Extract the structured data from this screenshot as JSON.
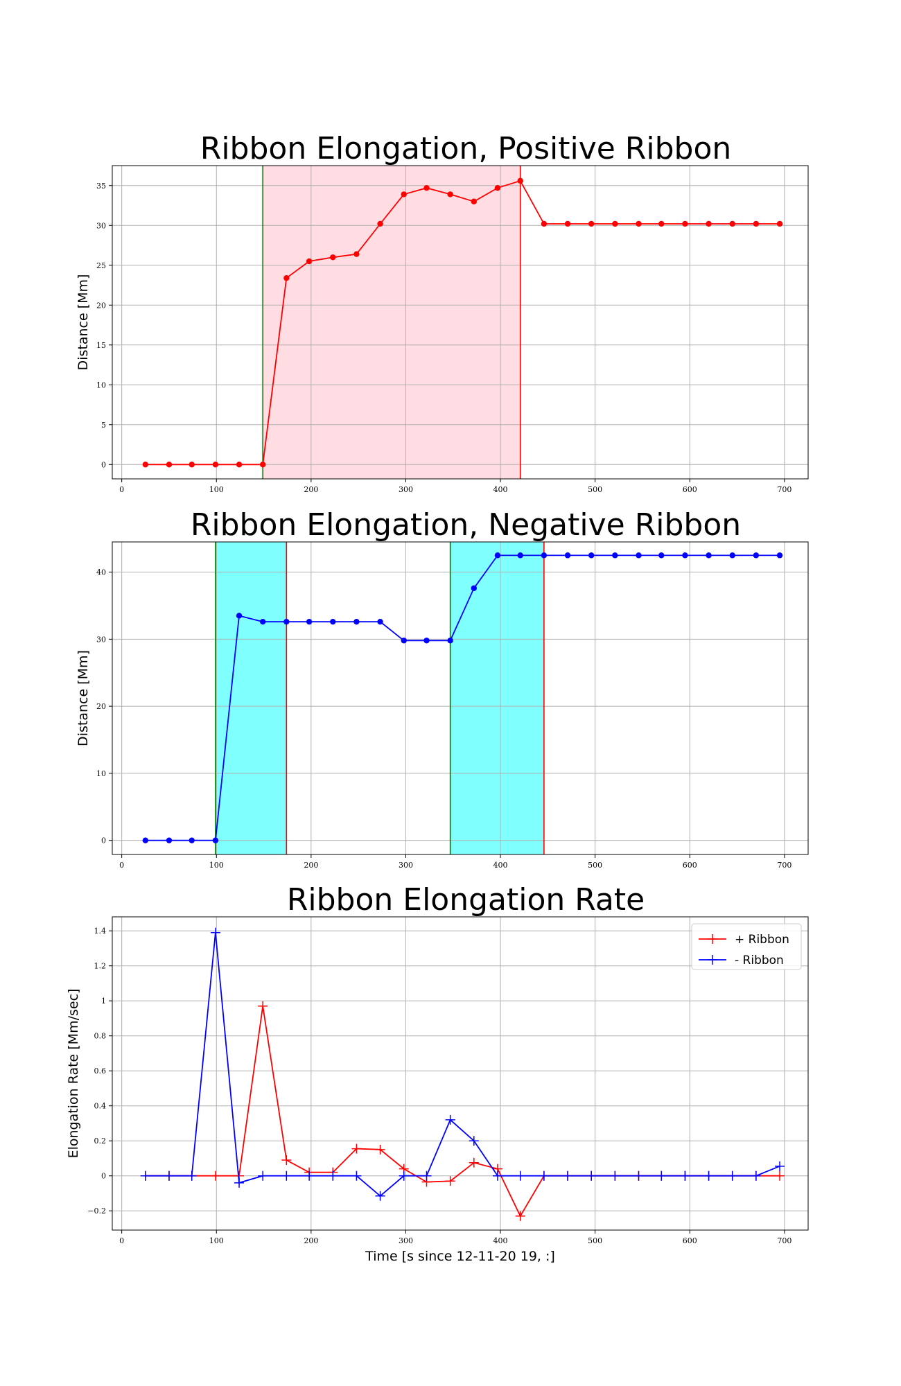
{
  "chart_data": [
    {
      "type": "line",
      "title": "Ribbon Elongation, Positive Ribbon",
      "xlabel": "",
      "ylabel": "Distance [Mm]",
      "xlim": [
        -10,
        725
      ],
      "ylim": [
        -1.8,
        37.5
      ],
      "xticks": [
        0,
        100,
        200,
        300,
        400,
        500,
        600,
        700
      ],
      "yticks": [
        0,
        5,
        10,
        15,
        20,
        25,
        30,
        35
      ],
      "grid": true,
      "shaded_regions": [
        {
          "start": 149,
          "end": 421,
          "color": "#ffdde3"
        }
      ],
      "vertical_lines": [
        {
          "x": 149,
          "color": "#008000"
        },
        {
          "x": 421,
          "color": "#ff0000"
        }
      ],
      "series": [
        {
          "color": "#ff0000",
          "marker": "circle",
          "x": [
            25,
            50,
            74,
            99,
            124,
            149,
            174,
            198,
            223,
            248,
            273,
            298,
            322,
            347,
            372,
            397,
            421,
            446,
            471,
            496,
            521,
            546,
            570,
            595,
            620,
            645,
            670,
            695
          ],
          "y": [
            0,
            0,
            0,
            0,
            0,
            0,
            23.4,
            25.5,
            26.0,
            26.4,
            30.2,
            33.9,
            34.7,
            33.9,
            33.0,
            34.7,
            35.6,
            30.2,
            30.2,
            30.2,
            30.2,
            30.2,
            30.2,
            30.2,
            30.2,
            30.2,
            30.2,
            30.2
          ]
        }
      ]
    },
    {
      "type": "line",
      "title": "Ribbon Elongation, Negative Ribbon",
      "xlabel": "",
      "ylabel": "Distance [Mm]",
      "xlim": [
        -10,
        725
      ],
      "ylim": [
        -2.1,
        44.5
      ],
      "xticks": [
        0,
        100,
        200,
        300,
        400,
        500,
        600,
        700
      ],
      "yticks": [
        0,
        10,
        20,
        30,
        40
      ],
      "grid": true,
      "shaded_regions": [
        {
          "start": 99,
          "end": 174,
          "color": "#80ffff"
        },
        {
          "start": 347,
          "end": 446,
          "color": "#80ffff"
        }
      ],
      "vertical_lines": [
        {
          "x": 99,
          "color": "#008000"
        },
        {
          "x": 174,
          "color": "#ff0000"
        },
        {
          "x": 347,
          "color": "#008000"
        },
        {
          "x": 446,
          "color": "#ff0000"
        }
      ],
      "series": [
        {
          "color": "#0000ff",
          "marker": "circle",
          "x": [
            25,
            50,
            74,
            99,
            124,
            149,
            174,
            198,
            223,
            248,
            273,
            298,
            322,
            347,
            372,
            397,
            421,
            446,
            471,
            496,
            521,
            546,
            570,
            595,
            620,
            645,
            670,
            695
          ],
          "y": [
            0,
            0,
            0,
            0,
            33.5,
            32.6,
            32.6,
            32.6,
            32.6,
            32.6,
            32.6,
            29.8,
            29.8,
            29.8,
            37.6,
            42.5,
            42.5,
            42.5,
            42.5,
            42.5,
            42.5,
            42.5,
            42.5,
            42.5,
            42.5,
            42.5,
            42.5,
            42.5
          ]
        }
      ]
    },
    {
      "type": "line",
      "title": "Ribbon Elongation Rate",
      "xlabel": "Time [s since 12-11-20 19, :]",
      "ylabel": "Elongation Rate [Mm/sec]",
      "xlim": [
        -10,
        725
      ],
      "ylim": [
        -0.31,
        1.48
      ],
      "xticks": [
        0,
        100,
        200,
        300,
        400,
        500,
        600,
        700
      ],
      "yticks": [
        -0.2,
        0.0,
        0.2,
        0.4,
        0.6,
        0.8,
        1.0,
        1.2,
        1.4
      ],
      "grid": true,
      "legend": "top-right",
      "series": [
        {
          "name": "+ Ribbon",
          "color": "#ff0000",
          "marker": "plus",
          "x": [
            25,
            50,
            74,
            99,
            124,
            149,
            174,
            198,
            223,
            248,
            273,
            298,
            322,
            347,
            372,
            397,
            421,
            446,
            471,
            496,
            521,
            546,
            570,
            595,
            620,
            645,
            670,
            695
          ],
          "y": [
            0,
            0,
            0,
            0,
            0,
            0.97,
            0.09,
            0.02,
            0.02,
            0.155,
            0.15,
            0.04,
            -0.035,
            -0.03,
            0.075,
            0.04,
            -0.23,
            0,
            0,
            0,
            0,
            0,
            0,
            0,
            0,
            0,
            0,
            0
          ]
        },
        {
          "name": "- Ribbon",
          "color": "#0000ff",
          "marker": "plus",
          "x": [
            25,
            50,
            74,
            99,
            124,
            149,
            174,
            198,
            223,
            248,
            273,
            298,
            322,
            347,
            372,
            397,
            421,
            446,
            471,
            496,
            521,
            546,
            570,
            595,
            620,
            645,
            670,
            695
          ],
          "y": [
            0,
            0,
            0,
            1.39,
            -0.04,
            0,
            0,
            0,
            0,
            0,
            -0.115,
            0,
            0,
            0.32,
            0.2,
            0,
            0,
            0,
            0,
            0,
            0,
            0,
            0,
            0,
            0,
            0,
            0,
            0.055
          ]
        }
      ]
    }
  ]
}
